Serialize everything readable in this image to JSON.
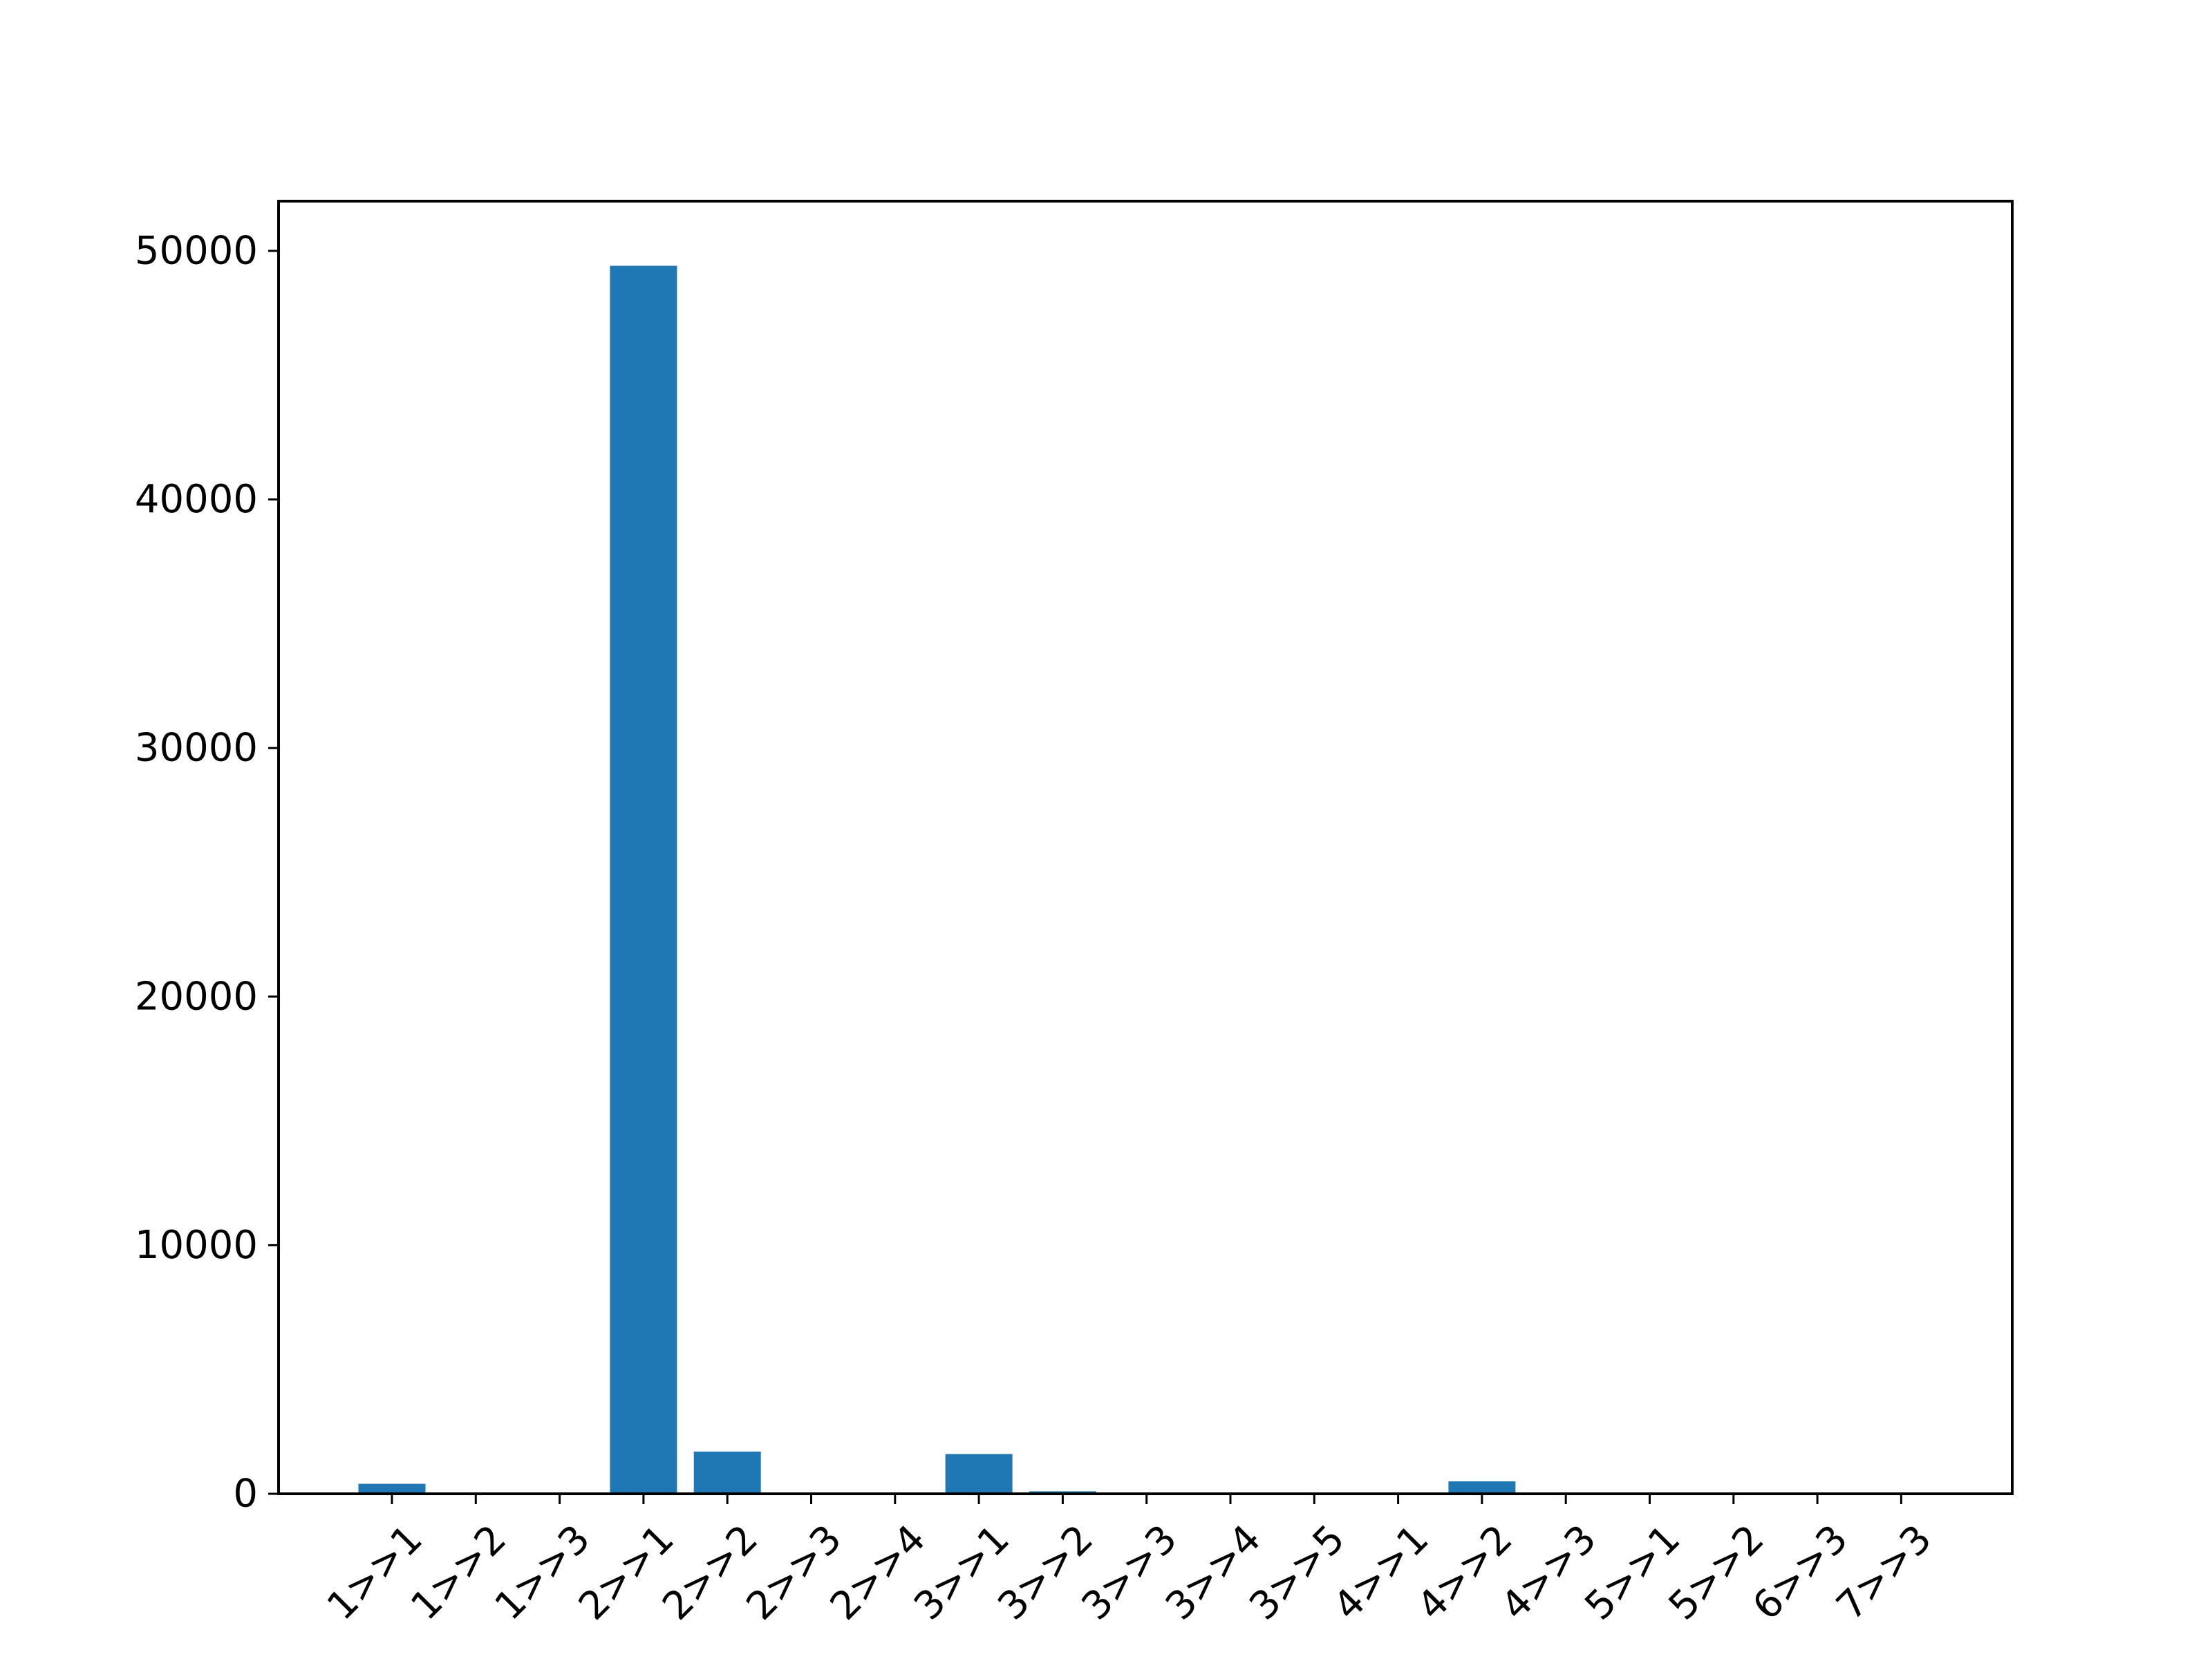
{
  "chart_data": {
    "type": "bar",
    "title": "",
    "xlabel": "",
    "ylabel": "",
    "categories": [
      "1>>1",
      "1>>2",
      "1>>3",
      "2>>1",
      "2>>2",
      "2>>3",
      "2>>4",
      "3>>1",
      "3>>2",
      "3>>3",
      "3>>4",
      "3>>5",
      "4>>1",
      "4>>2",
      "4>>3",
      "5>>1",
      "5>>2",
      "6>>3",
      "7>>3"
    ],
    "values": [
      400,
      0,
      0,
      49400,
      1700,
      30,
      0,
      1600,
      100,
      0,
      0,
      0,
      0,
      500,
      0,
      0,
      0,
      0,
      0
    ],
    "ylim": [
      0,
      52000
    ],
    "yticks": [
      0,
      10000,
      20000,
      30000,
      40000,
      50000
    ],
    "bar_color": "#1f77b4",
    "grid": false,
    "legend": "none"
  }
}
